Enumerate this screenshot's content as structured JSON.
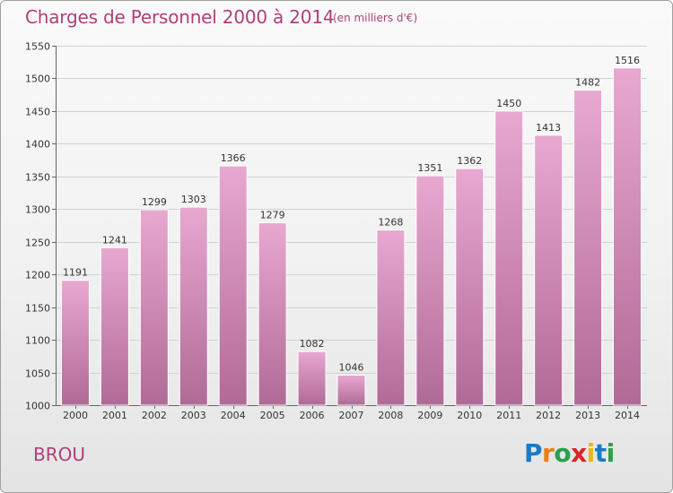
{
  "title": "Charges de Personnel 2000 à 2014",
  "subtitle": "(en milliers d'€)",
  "commune": "BROU",
  "logo": {
    "letters": [
      "P",
      "r",
      "o",
      "x",
      "i",
      "t",
      "i"
    ],
    "colors": [
      "#1a7ac8",
      "#e8801a",
      "#2aa04a",
      "#d8262c",
      "#e8b81a",
      "#1a7ac8",
      "#2aa04a"
    ]
  },
  "colors": {
    "accent": "#b0407a",
    "bar_top": "#e8a8d0",
    "bar_bottom": "#b06a96"
  },
  "chart_data": {
    "type": "bar",
    "categories": [
      "2000",
      "2001",
      "2002",
      "2003",
      "2004",
      "2005",
      "2006",
      "2007",
      "2008",
      "2009",
      "2010",
      "2011",
      "2012",
      "2013",
      "2014"
    ],
    "values": [
      1191,
      1241,
      1299,
      1303,
      1366,
      1279,
      1082,
      1046,
      1268,
      1351,
      1362,
      1450,
      1413,
      1482,
      1516
    ],
    "yticks": [
      1000,
      1050,
      1100,
      1150,
      1200,
      1250,
      1300,
      1350,
      1400,
      1450,
      1500,
      1550
    ],
    "ylim": [
      1000,
      1550
    ],
    "grid": true
  }
}
